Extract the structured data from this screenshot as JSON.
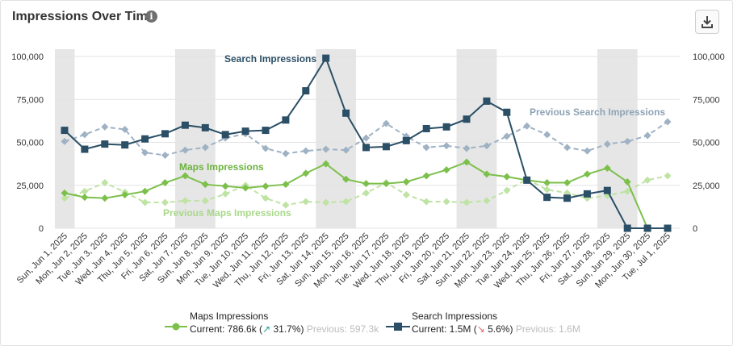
{
  "header": {
    "title": "Impressions Over Time",
    "info_icon": "info-icon",
    "download_icon": "download-icon"
  },
  "colors": {
    "search": "#2b4f66",
    "search_prev": "#9fb2c4",
    "maps": "#7cc04b",
    "maps_prev": "#bfe3a3",
    "weekend_band": "#e6e6e6",
    "grid": "#e3e3e3"
  },
  "chart_data": {
    "type": "line",
    "x": [
      "Sun, Jun 1, 2025",
      "Mon, Jun 2, 2025",
      "Tue, Jun 3, 2025",
      "Wed, Jun 4, 2025",
      "Thu, Jun 5, 2025",
      "Fri, Jun 6, 2025",
      "Sat, Jun 7, 2025",
      "Sun, Jun 8, 2025",
      "Mon, Jun 9, 2025",
      "Tue, Jun 10, 2025",
      "Wed, Jun 11, 2025",
      "Thu, Jun 12, 2025",
      "Fri, Jun 13, 2025",
      "Sat, Jun 14, 2025",
      "Sun, Jun 15, 2025",
      "Mon, Jun 16, 2025",
      "Tue, Jun 17, 2025",
      "Wed, Jun 18, 2025",
      "Thu, Jun 19, 2025",
      "Fri, Jun 20, 2025",
      "Sat, Jun 21, 2025",
      "Sun, Jun 22, 2025",
      "Mon, Jun 23, 2025",
      "Tue, Jun 24, 2025",
      "Wed, Jun 25, 2025",
      "Thu, Jun 26, 2025",
      "Fri, Jun 27, 2025",
      "Sat, Jun 28, 2025",
      "Sun, Jun 29, 2025",
      "Mon, Jun 30, 2025",
      "Tue, Jul 1, 2025"
    ],
    "ylim": [
      0,
      100000
    ],
    "yticks": [
      0,
      25000,
      50000,
      75000,
      100000
    ],
    "ytick_labels": [
      "0",
      "25,000",
      "50,000",
      "75,000",
      "100,000"
    ],
    "weekend_bands": [
      [
        "Sun, Jun 1, 2025",
        "Sun, Jun 1, 2025"
      ],
      [
        "Sat, Jun 7, 2025",
        "Sun, Jun 8, 2025"
      ],
      [
        "Sat, Jun 14, 2025",
        "Sun, Jun 15, 2025"
      ],
      [
        "Sat, Jun 21, 2025",
        "Sun, Jun 22, 2025"
      ],
      [
        "Sat, Jun 28, 2025",
        "Sun, Jun 29, 2025"
      ]
    ],
    "series": [
      {
        "name": "Search Impressions",
        "label_x": "Fri, Jun 13, 2025",
        "values": [
          57000,
          46000,
          49000,
          48500,
          52000,
          55000,
          60000,
          58500,
          54500,
          56500,
          57000,
          63000,
          80000,
          99000,
          67000,
          47000,
          47500,
          51000,
          58000,
          59000,
          63500,
          74000,
          67500,
          28000,
          18000,
          17500,
          20000,
          22000,
          0,
          0,
          0
        ]
      },
      {
        "name": "Previous Search Impressions",
        "label_x": "Mon, Jun 23, 2025",
        "values": [
          50500,
          54500,
          59000,
          57500,
          44000,
          42500,
          45500,
          47000,
          52500,
          55000,
          46500,
          43500,
          45000,
          46000,
          45500,
          52500,
          61000,
          53500,
          47000,
          48000,
          46500,
          48000,
          53500,
          59500,
          54500,
          47000,
          45000,
          49000,
          50500,
          54000,
          62000
        ]
      },
      {
        "name": "Maps Impressions",
        "label_x": "Mon, Jun 9, 2025",
        "values": [
          20500,
          18000,
          17500,
          19500,
          21500,
          26500,
          30500,
          25500,
          24500,
          23500,
          24500,
          25500,
          32000,
          37500,
          28500,
          26000,
          26000,
          27000,
          30500,
          34000,
          38500,
          31500,
          30000,
          28000,
          26500,
          26500,
          31500,
          35000,
          27000,
          0,
          0
        ]
      },
      {
        "name": "Previous Maps Impressions",
        "label_x": "Wed, Jun 11, 2025",
        "values": [
          17500,
          21500,
          26500,
          21000,
          15000,
          15000,
          16000,
          16000,
          20000,
          25000,
          17500,
          13500,
          15500,
          15000,
          15500,
          20500,
          26500,
          19500,
          15500,
          15500,
          15000,
          16000,
          22000,
          28500,
          22500,
          20500,
          17500,
          19000,
          21500,
          28000,
          30500
        ]
      }
    ],
    "legend": [
      {
        "name": "Maps Impressions",
        "current_label": "Current: 786.6k",
        "change": "31.7%",
        "direction": "up",
        "previous_label": "Previous: 597.3k"
      },
      {
        "name": "Search Impressions",
        "current_label": "Current: 1.5M",
        "change": "5.6%",
        "direction": "down",
        "previous_label": "Previous: 1.6M"
      }
    ]
  }
}
